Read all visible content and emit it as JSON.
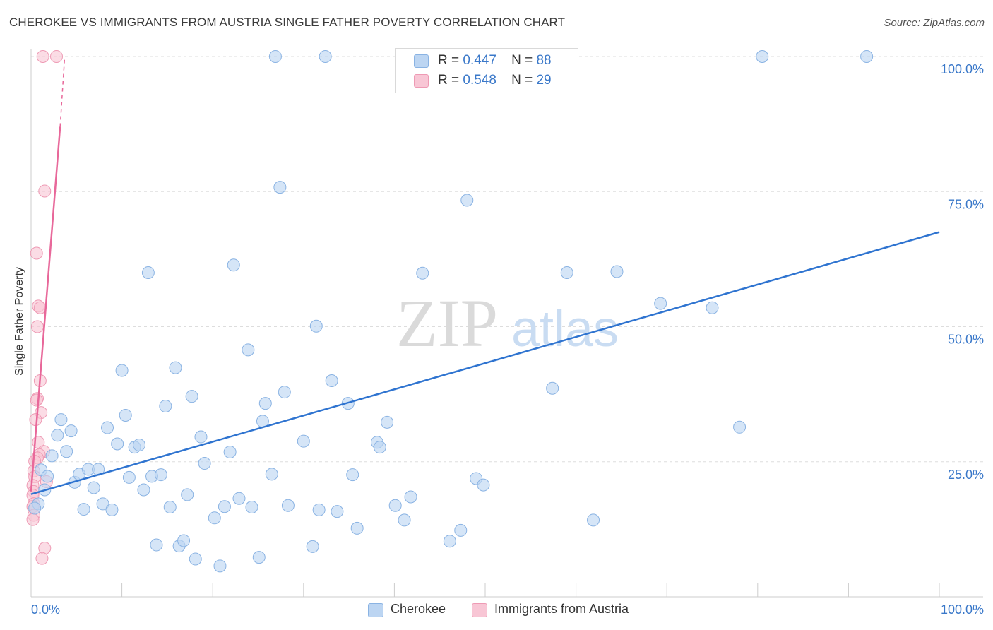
{
  "title": "CHEROKEE VS IMMIGRANTS FROM AUSTRIA SINGLE FATHER POVERTY CORRELATION CHART",
  "source": "Source: ZipAtlas.com",
  "watermark": {
    "zip": "ZIP",
    "atlas": "atlas"
  },
  "legend_top": {
    "r_label": "R =",
    "n_label": "N =",
    "series": [
      {
        "name": "Cherokee",
        "r": "0.447",
        "n": "88"
      },
      {
        "name": "Immigrants from Austria",
        "r": "0.548",
        "n": "29"
      }
    ]
  },
  "legend_bottom": [
    {
      "label": "Cherokee"
    },
    {
      "label": "Immigrants from Austria"
    }
  ],
  "colors": {
    "blue_fill": "#bcd5f2",
    "blue_stroke": "#8ab3e3",
    "blue_line": "#2f74d0",
    "pink_fill": "#f8c6d5",
    "pink_stroke": "#ee9ab4",
    "pink_line": "#e8689a",
    "axis_label": "#3a78c9",
    "grid": "#dddddd"
  },
  "chart_data": {
    "type": "scatter",
    "title": "CHEROKEE VS IMMIGRANTS FROM AUSTRIA SINGLE FATHER POVERTY CORRELATION CHART",
    "xlabel": "",
    "ylabel": "Single Father Poverty",
    "xlim": [
      0,
      100
    ],
    "ylim": [
      0,
      102
    ],
    "x_tick_labels": [
      "0.0%",
      "100.0%"
    ],
    "y_ticks": [
      25,
      50,
      75,
      100
    ],
    "y_tick_labels": [
      "25.0%",
      "50.0%",
      "75.0%",
      "100.0%"
    ],
    "grid": true,
    "legend": "top-center",
    "series": [
      {
        "name": "Cherokee",
        "r": 0.447,
        "n": 88,
        "trend": {
          "x": [
            0,
            100
          ],
          "y": [
            19.0,
            67.5
          ],
          "style": "solid"
        },
        "points": [
          [
            0.8,
            17.2
          ],
          [
            1.1,
            23.5
          ],
          [
            1.8,
            22.3
          ],
          [
            2.3,
            26.1
          ],
          [
            2.9,
            29.9
          ],
          [
            3.3,
            32.8
          ],
          [
            3.9,
            26.9
          ],
          [
            4.4,
            30.7
          ],
          [
            4.8,
            21.2
          ],
          [
            5.3,
            22.7
          ],
          [
            5.8,
            16.2
          ],
          [
            6.3,
            23.6
          ],
          [
            6.9,
            20.2
          ],
          [
            7.4,
            23.6
          ],
          [
            7.9,
            17.2
          ],
          [
            8.4,
            31.3
          ],
          [
            8.9,
            16.1
          ],
          [
            9.5,
            28.3
          ],
          [
            10.0,
            41.9
          ],
          [
            10.4,
            33.6
          ],
          [
            10.8,
            22.1
          ],
          [
            11.4,
            27.7
          ],
          [
            11.9,
            28.1
          ],
          [
            12.4,
            19.8
          ],
          [
            12.9,
            60.0
          ],
          [
            13.3,
            22.3
          ],
          [
            13.8,
            9.6
          ],
          [
            14.3,
            22.6
          ],
          [
            14.8,
            35.3
          ],
          [
            15.3,
            16.6
          ],
          [
            15.9,
            42.4
          ],
          [
            16.3,
            9.4
          ],
          [
            16.8,
            10.4
          ],
          [
            17.2,
            18.9
          ],
          [
            17.7,
            37.1
          ],
          [
            18.1,
            7.0
          ],
          [
            18.7,
            29.6
          ],
          [
            19.1,
            24.7
          ],
          [
            20.2,
            14.6
          ],
          [
            20.8,
            5.7
          ],
          [
            21.3,
            16.7
          ],
          [
            21.9,
            26.8
          ],
          [
            22.3,
            61.4
          ],
          [
            22.9,
            18.2
          ],
          [
            23.9,
            45.7
          ],
          [
            24.3,
            16.6
          ],
          [
            25.1,
            7.3
          ],
          [
            25.5,
            32.5
          ],
          [
            25.8,
            35.8
          ],
          [
            26.5,
            22.7
          ],
          [
            26.9,
            100.0
          ],
          [
            27.4,
            75.8
          ],
          [
            27.9,
            37.9
          ],
          [
            28.3,
            16.9
          ],
          [
            30.0,
            28.8
          ],
          [
            31.0,
            9.3
          ],
          [
            31.4,
            50.1
          ],
          [
            31.7,
            16.1
          ],
          [
            32.4,
            100.0
          ],
          [
            33.1,
            40.0
          ],
          [
            33.7,
            15.8
          ],
          [
            34.9,
            35.8
          ],
          [
            35.4,
            22.6
          ],
          [
            35.9,
            12.7
          ],
          [
            38.1,
            28.6
          ],
          [
            38.4,
            27.7
          ],
          [
            39.2,
            32.3
          ],
          [
            40.1,
            16.9
          ],
          [
            41.1,
            14.2
          ],
          [
            41.8,
            18.5
          ],
          [
            43.1,
            59.9
          ],
          [
            46.1,
            10.3
          ],
          [
            47.3,
            12.3
          ],
          [
            48.0,
            73.4
          ],
          [
            49.0,
            21.9
          ],
          [
            49.8,
            20.7
          ],
          [
            52.0,
            100.0
          ],
          [
            57.4,
            38.6
          ],
          [
            59.0,
            60.0
          ],
          [
            61.9,
            14.2
          ],
          [
            64.5,
            60.2
          ],
          [
            69.3,
            54.3
          ],
          [
            75.0,
            53.5
          ],
          [
            78.0,
            31.4
          ],
          [
            80.5,
            100.0
          ],
          [
            92.0,
            100.0
          ],
          [
            0.4,
            16.4
          ],
          [
            1.5,
            19.8
          ]
        ]
      },
      {
        "name": "Immigrants from Austria",
        "r": 0.548,
        "n": 29,
        "trend": {
          "x": [
            0,
            3.2
          ],
          "y": [
            19.5,
            87.0
          ],
          "style": "solid",
          "extension": {
            "x": [
              3.2,
              3.7
            ],
            "y": [
              87.0,
              100.0
            ],
            "style": "dashed"
          }
        },
        "points": [
          [
            1.3,
            100.0
          ],
          [
            2.8,
            100.0
          ],
          [
            1.5,
            75.1
          ],
          [
            0.6,
            63.6
          ],
          [
            0.8,
            53.8
          ],
          [
            1.0,
            53.5
          ],
          [
            0.7,
            50.0
          ],
          [
            1.0,
            40.0
          ],
          [
            0.7,
            36.7
          ],
          [
            0.6,
            36.4
          ],
          [
            1.1,
            34.1
          ],
          [
            0.5,
            32.8
          ],
          [
            0.8,
            28.6
          ],
          [
            1.4,
            26.9
          ],
          [
            0.9,
            26.3
          ],
          [
            0.7,
            25.7
          ],
          [
            0.4,
            25.1
          ],
          [
            0.3,
            23.3
          ],
          [
            0.4,
            22.2
          ],
          [
            1.7,
            21.3
          ],
          [
            0.2,
            20.6
          ],
          [
            0.3,
            19.5
          ],
          [
            0.2,
            18.8
          ],
          [
            0.3,
            17.2
          ],
          [
            0.2,
            16.7
          ],
          [
            0.3,
            15.1
          ],
          [
            0.2,
            14.3
          ],
          [
            1.5,
            9.0
          ],
          [
            1.2,
            7.1
          ]
        ]
      }
    ]
  }
}
